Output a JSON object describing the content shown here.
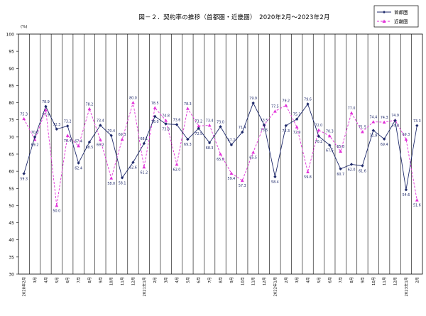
{
  "chart_data": {
    "type": "line",
    "title": "図－２．契約率の推移（首都圏・近畿圏）　2020年2月～2023年2月",
    "ylabel": "(%)",
    "xlabel": "",
    "ylim": [
      30,
      100
    ],
    "ytick_step": 5,
    "grid": "vertical lines at each month",
    "legend_position": "top-right",
    "categories": [
      "2020年2月",
      "3月",
      "4月",
      "5月",
      "6月",
      "7月",
      "8月",
      "9月",
      "10月",
      "11月",
      "12月",
      "2021年1月",
      "2月",
      "3月",
      "4月",
      "5月",
      "6月",
      "7月",
      "8月",
      "9月",
      "10月",
      "11月",
      "12月",
      "2022年1月",
      "2月",
      "3月",
      "4月",
      "5月",
      "6月",
      "7月",
      "8月",
      "9月",
      "10月",
      "11月",
      "12月",
      "2023年1月",
      "2月"
    ],
    "series": [
      {
        "name": "首都圏",
        "color": "#1f2a6b",
        "marker": "diamond",
        "line": "solid",
        "values": [
          59.3,
          70.0,
          78.9,
          72.3,
          73.2,
          62.4,
          68.5,
          73.4,
          70.4,
          58.1,
          62.6,
          68.1,
          76.0,
          73.8,
          73.6,
          69.3,
          72.5,
          68.3,
          73.0,
          67.7,
          71.4,
          79.9,
          73.5,
          58.4,
          73.3,
          75.2,
          79.6,
          70.2,
          67.6,
          60.7,
          62.0,
          61.6,
          71.9,
          69.4,
          74.8,
          54.6,
          73.3
        ]
      },
      {
        "name": "近畿圏",
        "color": "#e22fd8",
        "marker": "triangle",
        "line": "dashed",
        "values": [
          75.3,
          69.2,
          77.9,
          50.0,
          70.4,
          67.4,
          78.2,
          69.2,
          58.0,
          69.3,
          80.0,
          61.2,
          78.5,
          74.8,
          62.0,
          78.3,
          73.2,
          73.4,
          65.0,
          59.4,
          57.3,
          65.5,
          73.5,
          77.5,
          79.2,
          72.9,
          59.8,
          72.0,
          70.3,
          65.8,
          77.0,
          71.5,
          74.4,
          74.3,
          74.9,
          69.3,
          51.6
        ]
      }
    ]
  }
}
